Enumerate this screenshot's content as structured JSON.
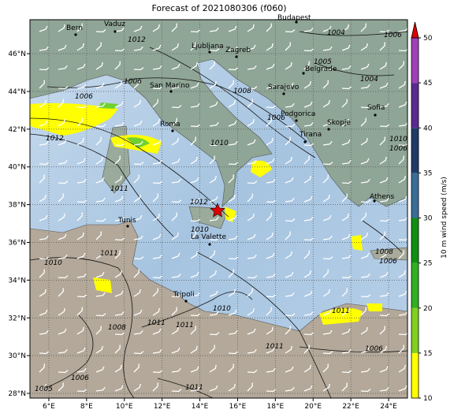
{
  "title": "Forecast of 2021080306 (f060)",
  "map": {
    "xlim": [
      5,
      25
    ],
    "ylim": [
      27.75,
      47.8
    ],
    "grid": true,
    "xticks": [
      {
        "value": 6,
        "label": "6°E"
      },
      {
        "value": 8,
        "label": "8°E"
      },
      {
        "value": 10,
        "label": "10°E"
      },
      {
        "value": 12,
        "label": "12°E"
      },
      {
        "value": 14,
        "label": "14°E"
      },
      {
        "value": 16,
        "label": "16°E"
      },
      {
        "value": 18,
        "label": "18°E"
      },
      {
        "value": 20,
        "label": "20°E"
      },
      {
        "value": 22,
        "label": "22°E"
      },
      {
        "value": 24,
        "label": "24°E"
      }
    ],
    "yticks": [
      {
        "value": 28,
        "label": "28°N"
      },
      {
        "value": 30,
        "label": "30°N"
      },
      {
        "value": 32,
        "label": "32°N"
      },
      {
        "value": 34,
        "label": "34°N"
      },
      {
        "value": 36,
        "label": "36°N"
      },
      {
        "value": 38,
        "label": "38°N"
      },
      {
        "value": 40,
        "label": "40°N"
      },
      {
        "value": 42,
        "label": "42°N"
      },
      {
        "value": 44,
        "label": "44°N"
      },
      {
        "value": 46,
        "label": "46°N"
      }
    ]
  },
  "cities": [
    "Bern",
    "Vaduz",
    "Budapest",
    "Ljubljana",
    "Zagreb",
    "Belgrade",
    "San Marino",
    "Sarajevo",
    "Podgorica",
    "Sofia",
    "Roma",
    "Skopje",
    "Tirana",
    "Athens",
    "Tunis",
    "La Valette",
    "Tripoli"
  ],
  "isobar_labels": [
    "1004",
    "1006",
    "1012",
    "1006",
    "1006",
    "1008",
    "1006",
    "1005",
    "1004",
    "1012",
    "1010",
    "1011",
    "1012",
    "1010",
    "1011",
    "1010",
    "1011",
    "1011",
    "1010",
    "1008",
    "1011",
    "1011",
    "1006",
    "1006",
    "1005",
    "1011",
    "1008",
    "1006",
    "1010",
    "1006"
  ],
  "colorbar": {
    "label": "10 m wind speed (m/s)",
    "lim": [
      10,
      50
    ],
    "ticks": [
      10,
      15,
      20,
      25,
      30,
      35,
      40,
      45,
      50
    ],
    "colors": [
      "#ffff00",
      "#80d020",
      "#30b020",
      "#109010",
      "#3a6e98",
      "#1f3a68",
      "#5a2a90",
      "#a040b8"
    ],
    "extend_color": "#e00000"
  }
}
